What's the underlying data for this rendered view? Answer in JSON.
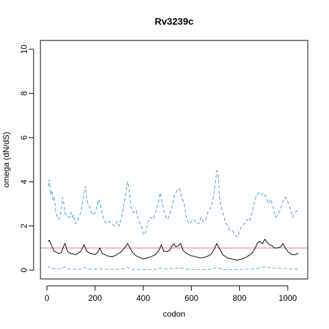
{
  "chart_data": {
    "type": "line",
    "title": "Rv3239c",
    "xlabel": "codon",
    "ylabel": "omega (dN/dS)",
    "xlim": [
      -27,
      1083
    ],
    "ylim": [
      -0.4,
      10.4
    ],
    "xticks": [
      0,
      200,
      400,
      600,
      800,
      1000
    ],
    "yticks": [
      0,
      2,
      4,
      6,
      8,
      10
    ],
    "grid": false,
    "reference_line": {
      "y": 1,
      "color": "#cc79a7"
    },
    "series": [
      {
        "role": "upper",
        "color": "#3b9bd8",
        "style": "dashed",
        "points": [
          [
            5,
            3.8
          ],
          [
            10,
            4.1
          ],
          [
            15,
            3.4
          ],
          [
            20,
            3.6
          ],
          [
            25,
            3.2
          ],
          [
            30,
            3.3
          ],
          [
            35,
            2.8
          ],
          [
            40,
            2.5
          ],
          [
            45,
            2.4
          ],
          [
            50,
            2.3
          ],
          [
            55,
            2.4
          ],
          [
            60,
            2.9
          ],
          [
            65,
            3.3
          ],
          [
            70,
            3.0
          ],
          [
            75,
            2.6
          ],
          [
            80,
            2.5
          ],
          [
            85,
            2.4
          ],
          [
            95,
            2.4
          ],
          [
            100,
            2.6
          ],
          [
            105,
            2.4
          ],
          [
            110,
            2.5
          ],
          [
            115,
            2.2
          ],
          [
            120,
            2.1
          ],
          [
            130,
            2.3
          ],
          [
            140,
            2.6
          ],
          [
            150,
            3.2
          ],
          [
            155,
            3.6
          ],
          [
            160,
            3.8
          ],
          [
            165,
            3.3
          ],
          [
            170,
            3.0
          ],
          [
            175,
            2.9
          ],
          [
            180,
            2.8
          ],
          [
            190,
            2.5
          ],
          [
            200,
            2.6
          ],
          [
            210,
            3.0
          ],
          [
            215,
            3.2
          ],
          [
            220,
            3.0
          ],
          [
            225,
            2.8
          ],
          [
            230,
            2.5
          ],
          [
            235,
            2.3
          ],
          [
            240,
            2.2
          ],
          [
            250,
            2.1
          ],
          [
            260,
            2.2
          ],
          [
            270,
            2.1
          ],
          [
            280,
            2.0
          ],
          [
            290,
            2.2
          ],
          [
            300,
            2.0
          ],
          [
            310,
            2.4
          ],
          [
            320,
            3.0
          ],
          [
            330,
            3.6
          ],
          [
            335,
            4.0
          ],
          [
            340,
            3.8
          ],
          [
            345,
            3.2
          ],
          [
            350,
            2.8
          ],
          [
            360,
            2.6
          ],
          [
            370,
            2.7
          ],
          [
            380,
            2.3
          ],
          [
            390,
            2.0
          ],
          [
            395,
            1.9
          ],
          [
            400,
            1.6
          ],
          [
            410,
            1.7
          ],
          [
            420,
            2.2
          ],
          [
            430,
            2.4
          ],
          [
            440,
            2.3
          ],
          [
            450,
            2.6
          ],
          [
            460,
            3.0
          ],
          [
            465,
            3.2
          ],
          [
            470,
            3.5
          ],
          [
            475,
            3.2
          ],
          [
            480,
            3.0
          ],
          [
            490,
            2.5
          ],
          [
            500,
            2.3
          ],
          [
            510,
            2.5
          ],
          [
            520,
            2.9
          ],
          [
            530,
            3.4
          ],
          [
            540,
            3.6
          ],
          [
            550,
            3.7
          ],
          [
            560,
            3.3
          ],
          [
            570,
            3.0
          ],
          [
            580,
            2.3
          ],
          [
            590,
            2.1
          ],
          [
            600,
            2.2
          ],
          [
            610,
            2.3
          ],
          [
            620,
            2.1
          ],
          [
            630,
            2.1
          ],
          [
            640,
            2.4
          ],
          [
            650,
            2.2
          ],
          [
            660,
            2.3
          ],
          [
            670,
            2.7
          ],
          [
            680,
            2.8
          ],
          [
            690,
            3.2
          ],
          [
            700,
            4.0
          ],
          [
            705,
            4.5
          ],
          [
            710,
            4.4
          ],
          [
            715,
            3.6
          ],
          [
            720,
            3.0
          ],
          [
            730,
            2.6
          ],
          [
            740,
            2.2
          ],
          [
            750,
            2.0
          ],
          [
            760,
            1.8
          ],
          [
            770,
            1.8
          ],
          [
            780,
            1.6
          ],
          [
            790,
            1.5
          ],
          [
            800,
            1.8
          ],
          [
            810,
            2.0
          ],
          [
            820,
            2.1
          ],
          [
            830,
            2.3
          ],
          [
            840,
            2.2
          ],
          [
            850,
            2.5
          ],
          [
            860,
            3.0
          ],
          [
            870,
            3.4
          ],
          [
            880,
            3.5
          ],
          [
            890,
            3.4
          ],
          [
            900,
            3.5
          ],
          [
            910,
            3.3
          ],
          [
            920,
            3.0
          ],
          [
            930,
            3.2
          ],
          [
            940,
            2.8
          ],
          [
            950,
            2.4
          ],
          [
            960,
            2.5
          ],
          [
            970,
            2.8
          ],
          [
            980,
            3.1
          ],
          [
            990,
            3.3
          ],
          [
            1000,
            3.1
          ],
          [
            1010,
            2.8
          ],
          [
            1020,
            2.4
          ],
          [
            1030,
            2.6
          ],
          [
            1040,
            2.7
          ],
          [
            1045,
            2.8
          ]
        ]
      },
      {
        "role": "estimate",
        "color": "#000000",
        "style": "solid",
        "points": [
          [
            5,
            1.3
          ],
          [
            10,
            1.35
          ],
          [
            20,
            1.1
          ],
          [
            30,
            0.85
          ],
          [
            40,
            0.8
          ],
          [
            50,
            0.75
          ],
          [
            60,
            0.8
          ],
          [
            70,
            1.1
          ],
          [
            75,
            1.2
          ],
          [
            85,
            0.85
          ],
          [
            100,
            0.75
          ],
          [
            120,
            0.7
          ],
          [
            140,
            0.85
          ],
          [
            150,
            1.05
          ],
          [
            155,
            1.15
          ],
          [
            165,
            0.85
          ],
          [
            180,
            0.75
          ],
          [
            200,
            0.7
          ],
          [
            210,
            0.8
          ],
          [
            220,
            1.0
          ],
          [
            230,
            0.75
          ],
          [
            250,
            0.65
          ],
          [
            270,
            0.6
          ],
          [
            290,
            0.7
          ],
          [
            310,
            0.85
          ],
          [
            325,
            1.05
          ],
          [
            335,
            1.2
          ],
          [
            345,
            1.0
          ],
          [
            355,
            0.8
          ],
          [
            370,
            0.65
          ],
          [
            390,
            0.55
          ],
          [
            400,
            0.5
          ],
          [
            415,
            0.55
          ],
          [
            430,
            0.6
          ],
          [
            450,
            0.7
          ],
          [
            465,
            0.9
          ],
          [
            475,
            1.15
          ],
          [
            485,
            0.85
          ],
          [
            500,
            0.85
          ],
          [
            510,
            0.9
          ],
          [
            520,
            1.1
          ],
          [
            528,
            1.2
          ],
          [
            535,
            1.05
          ],
          [
            545,
            1.1
          ],
          [
            555,
            1.2
          ],
          [
            565,
            0.9
          ],
          [
            580,
            0.75
          ],
          [
            600,
            0.65
          ],
          [
            620,
            0.6
          ],
          [
            640,
            0.55
          ],
          [
            660,
            0.6
          ],
          [
            680,
            0.7
          ],
          [
            695,
            0.95
          ],
          [
            705,
            1.2
          ],
          [
            715,
            1.0
          ],
          [
            730,
            0.7
          ],
          [
            750,
            0.55
          ],
          [
            770,
            0.5
          ],
          [
            790,
            0.45
          ],
          [
            810,
            0.5
          ],
          [
            830,
            0.6
          ],
          [
            850,
            0.75
          ],
          [
            865,
            1.0
          ],
          [
            875,
            1.25
          ],
          [
            885,
            1.3
          ],
          [
            895,
            1.2
          ],
          [
            905,
            1.4
          ],
          [
            915,
            1.25
          ],
          [
            925,
            1.15
          ],
          [
            935,
            1.1
          ],
          [
            945,
            1.0
          ],
          [
            955,
            1.0
          ],
          [
            970,
            1.05
          ],
          [
            980,
            1.2
          ],
          [
            990,
            1.0
          ],
          [
            1000,
            0.85
          ],
          [
            1010,
            0.75
          ],
          [
            1020,
            0.7
          ],
          [
            1030,
            0.7
          ],
          [
            1040,
            0.75
          ],
          [
            1045,
            0.75
          ]
        ]
      },
      {
        "role": "lower",
        "color": "#3bb8d8",
        "style": "dashed",
        "points": [
          [
            5,
            0.1
          ],
          [
            10,
            0.18
          ],
          [
            20,
            0.08
          ],
          [
            40,
            0.05
          ],
          [
            60,
            0.06
          ],
          [
            75,
            0.15
          ],
          [
            90,
            0.06
          ],
          [
            110,
            0.04
          ],
          [
            140,
            0.05
          ],
          [
            155,
            0.12
          ],
          [
            170,
            0.05
          ],
          [
            200,
            0.04
          ],
          [
            220,
            0.07
          ],
          [
            250,
            0.03
          ],
          [
            300,
            0.03
          ],
          [
            335,
            0.12
          ],
          [
            350,
            0.04
          ],
          [
            400,
            0.02
          ],
          [
            450,
            0.03
          ],
          [
            475,
            0.1
          ],
          [
            500,
            0.04
          ],
          [
            520,
            0.08
          ],
          [
            555,
            0.1
          ],
          [
            580,
            0.04
          ],
          [
            640,
            0.02
          ],
          [
            680,
            0.03
          ],
          [
            705,
            0.12
          ],
          [
            730,
            0.03
          ],
          [
            790,
            0.02
          ],
          [
            850,
            0.05
          ],
          [
            880,
            0.1
          ],
          [
            905,
            0.15
          ],
          [
            930,
            0.1
          ],
          [
            960,
            0.08
          ],
          [
            980,
            0.1
          ],
          [
            1010,
            0.05
          ],
          [
            1045,
            0.05
          ]
        ]
      }
    ]
  }
}
